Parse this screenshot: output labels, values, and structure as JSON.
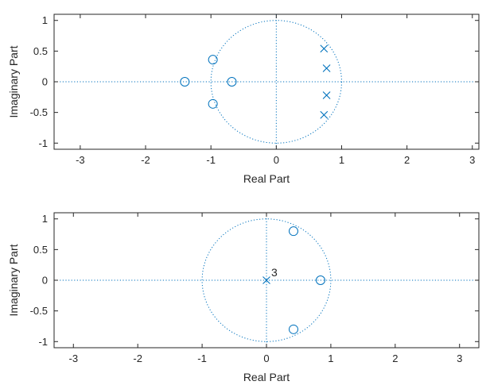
{
  "chart_data": [
    {
      "type": "scatter",
      "xlabel": "Real Part",
      "ylabel": "Imaginary Part",
      "xlim": [
        -3.4,
        3.1
      ],
      "ylim": [
        -1.1,
        1.1
      ],
      "xticks": [
        -3,
        -2,
        -1,
        0,
        1,
        2,
        3
      ],
      "yticks": [
        -1,
        -0.5,
        0,
        0.5,
        1
      ],
      "ytick_labels": [
        "-1",
        "-0.5",
        "0",
        "0.5",
        "1"
      ],
      "unit_circle": true,
      "zeros": [
        [
          -1.4,
          0
        ],
        [
          -0.97,
          0.36
        ],
        [
          -0.97,
          -0.36
        ],
        [
          -0.68,
          0
        ]
      ],
      "poles": [
        [
          0.73,
          0.54
        ],
        [
          0.77,
          0.22
        ],
        [
          0.77,
          -0.22
        ],
        [
          0.73,
          -0.54
        ]
      ],
      "annotations": []
    },
    {
      "type": "scatter",
      "xlabel": "Real Part",
      "ylabel": "Imaginary Part",
      "xlim": [
        -3.3,
        3.3
      ],
      "ylim": [
        -1.1,
        1.1
      ],
      "xticks": [
        -3,
        -2,
        -1,
        0,
        1,
        2,
        3
      ],
      "yticks": [
        -1,
        -0.5,
        0,
        0.5,
        1
      ],
      "ytick_labels": [
        "-1",
        "-0.5",
        "0",
        "0.5",
        "1"
      ],
      "unit_circle": true,
      "zeros": [
        [
          0.42,
          0.8
        ],
        [
          0.42,
          -0.8
        ],
        [
          0.84,
          0
        ]
      ],
      "poles": [
        [
          0,
          0
        ]
      ],
      "annotations": [
        {
          "x": 0,
          "y": 0,
          "text": "3"
        }
      ]
    }
  ],
  "colors": {
    "marker": "#0072BD",
    "axis": "#262626",
    "background": "#ffffff"
  }
}
